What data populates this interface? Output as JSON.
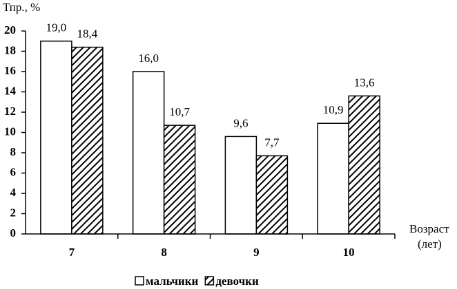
{
  "chart_data": {
    "type": "bar",
    "y_label": "Тпр., %",
    "x_label": [
      "Возраст",
      "(лет)"
    ],
    "categories": [
      "7",
      "8",
      "9",
      "10"
    ],
    "series": [
      {
        "name": "мальчики",
        "color": "#ffffff",
        "hatch": false,
        "values": [
          19.0,
          16.0,
          9.6,
          10.9
        ],
        "value_labels": [
          "19,0",
          "16,0",
          "9,6",
          "10,9"
        ]
      },
      {
        "name": "девочки",
        "color": "#ffffff",
        "hatch": true,
        "values": [
          18.4,
          10.7,
          7.7,
          13.6
        ],
        "value_labels": [
          "18,4",
          "10,7",
          "7,7",
          "13,6"
        ]
      }
    ],
    "ylim": [
      0,
      20
    ],
    "yticks": [
      0,
      2,
      4,
      6,
      8,
      10,
      12,
      14,
      16,
      18,
      20
    ],
    "grid": false
  }
}
